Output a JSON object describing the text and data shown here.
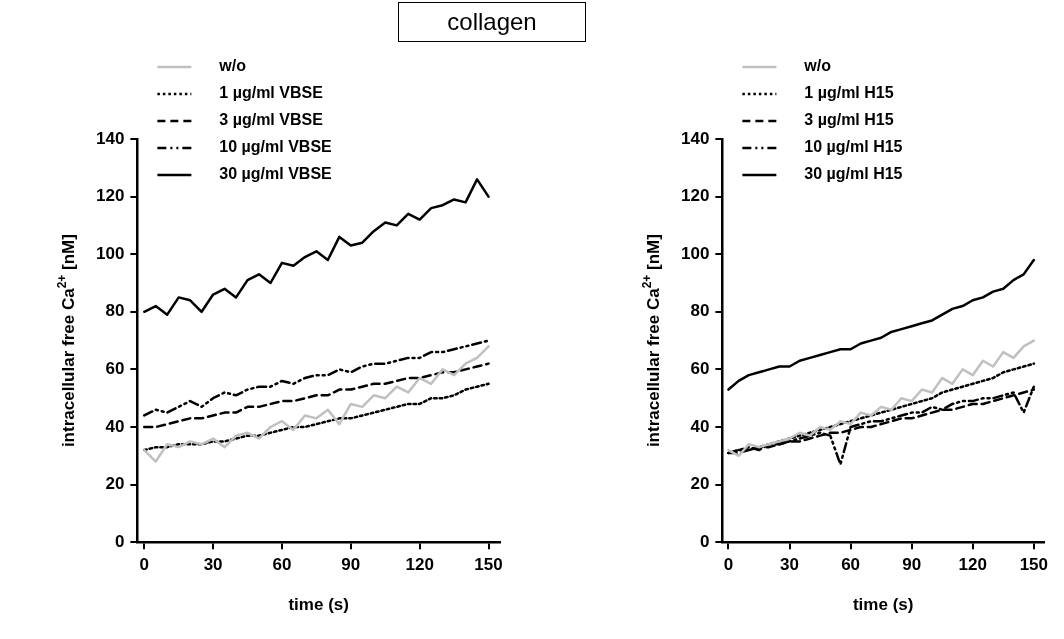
{
  "chart_data": [
    {
      "type": "line",
      "title": "collagen",
      "xlabel": "time (s)",
      "ylabel": "intracellular free Ca$^{2+}$ [nM]",
      "legend": "top left",
      "grid": false,
      "marker": "none",
      "xlim": [
        -3,
        155
      ],
      "ylim": [
        0,
        140
      ],
      "xticks": [
        0,
        30,
        60,
        90,
        120,
        150
      ],
      "yticks": [
        0,
        20,
        40,
        60,
        80,
        100,
        120,
        140
      ],
      "x": [
        0,
        5,
        10,
        15,
        20,
        25,
        30,
        35,
        40,
        45,
        50,
        55,
        60,
        65,
        70,
        75,
        80,
        85,
        90,
        95,
        100,
        105,
        110,
        115,
        120,
        125,
        130,
        135,
        140,
        145,
        150
      ],
      "series": [
        {
          "name": "w/o",
          "color": "#c0c0c0",
          "line_style": "solid",
          "values": [
            32,
            28,
            34,
            33,
            35,
            34,
            36,
            33,
            37,
            38,
            36,
            40,
            42,
            39,
            44,
            43,
            46,
            41,
            48,
            47,
            51,
            50,
            54,
            52,
            57,
            55,
            60,
            58,
            62,
            64,
            68
          ]
        },
        {
          "name": "1 µg/ml VBSE",
          "color": "#000000",
          "line_style": "dotted",
          "values": [
            32,
            33,
            33,
            34,
            34,
            34,
            35,
            35,
            36,
            37,
            37,
            38,
            39,
            40,
            40,
            41,
            42,
            43,
            43,
            44,
            45,
            46,
            47,
            48,
            48,
            50,
            50,
            51,
            53,
            54,
            55
          ]
        },
        {
          "name": "3 µg/ml VBSE",
          "color": "#000000",
          "line_style": "dashed",
          "values": [
            40,
            40,
            41,
            42,
            43,
            43,
            44,
            45,
            45,
            47,
            47,
            48,
            49,
            49,
            50,
            51,
            51,
            53,
            53,
            54,
            55,
            55,
            56,
            57,
            57,
            58,
            59,
            59,
            60,
            61,
            62
          ]
        },
        {
          "name": "10 µg/ml VBSE",
          "color": "#000000",
          "line_style": "dashdot",
          "values": [
            44,
            46,
            45,
            47,
            49,
            47,
            50,
            52,
            51,
            53,
            54,
            54,
            56,
            55,
            57,
            58,
            58,
            60,
            59,
            61,
            62,
            62,
            63,
            64,
            64,
            66,
            66,
            67,
            68,
            69,
            70
          ]
        },
        {
          "name": "30 µg/ml VBSE",
          "color": "#000000",
          "line_style": "solid",
          "values": [
            80,
            82,
            79,
            85,
            84,
            80,
            86,
            88,
            85,
            91,
            93,
            90,
            97,
            96,
            99,
            101,
            98,
            106,
            103,
            104,
            108,
            111,
            110,
            114,
            112,
            116,
            117,
            119,
            118,
            126,
            120
          ]
        }
      ]
    },
    {
      "type": "line",
      "xlabel": "time (s)",
      "ylabel": "intracellular free Ca$^{2+}$ [nM]",
      "legend": "top left",
      "grid": false,
      "marker": "none",
      "xlim": [
        -3,
        155
      ],
      "ylim": [
        0,
        140
      ],
      "xticks": [
        0,
        30,
        60,
        90,
        120,
        150
      ],
      "yticks": [
        0,
        20,
        40,
        60,
        80,
        100,
        120,
        140
      ],
      "x": [
        0,
        5,
        10,
        15,
        20,
        25,
        30,
        35,
        40,
        45,
        50,
        55,
        60,
        65,
        70,
        75,
        80,
        85,
        90,
        95,
        100,
        105,
        110,
        115,
        120,
        125,
        130,
        135,
        140,
        145,
        150
      ],
      "series": [
        {
          "name": "w/o",
          "color": "#c0c0c0",
          "line_style": "solid",
          "values": [
            32,
            30,
            34,
            33,
            34,
            35,
            36,
            38,
            37,
            40,
            39,
            42,
            41,
            45,
            44,
            47,
            46,
            50,
            49,
            53,
            52,
            57,
            55,
            60,
            58,
            63,
            61,
            66,
            64,
            68,
            70
          ]
        },
        {
          "name": "1 µg/ml H15",
          "color": "#000000",
          "line_style": "dotted",
          "values": [
            31,
            32,
            32,
            33,
            34,
            35,
            36,
            37,
            38,
            39,
            40,
            41,
            42,
            43,
            44,
            45,
            46,
            47,
            48,
            49,
            50,
            52,
            53,
            54,
            55,
            56,
            57,
            59,
            60,
            61,
            62
          ]
        },
        {
          "name": "3 µg/ml H15",
          "color": "#000000",
          "line_style": "dashed",
          "values": [
            31,
            31,
            32,
            33,
            33,
            34,
            35,
            35,
            36,
            37,
            38,
            38,
            39,
            40,
            40,
            41,
            42,
            43,
            43,
            44,
            45,
            46,
            46,
            47,
            48,
            48,
            49,
            50,
            51,
            52,
            53
          ]
        },
        {
          "name": "10 µg/ml H15",
          "color": "#000000",
          "line_style": "dashdot",
          "values": [
            31,
            32,
            33,
            32,
            34,
            34,
            35,
            36,
            37,
            38,
            37,
            27,
            40,
            41,
            42,
            42,
            43,
            44,
            45,
            45,
            47,
            46,
            48,
            49,
            49,
            50,
            50,
            51,
            52,
            45,
            54
          ]
        },
        {
          "name": "30 µg/ml H15",
          "color": "#000000",
          "line_style": "solid",
          "values": [
            53,
            56,
            58,
            59,
            60,
            61,
            61,
            63,
            64,
            65,
            66,
            67,
            67,
            69,
            70,
            71,
            73,
            74,
            75,
            76,
            77,
            79,
            81,
            82,
            84,
            85,
            87,
            88,
            91,
            93,
            98
          ]
        }
      ]
    }
  ]
}
